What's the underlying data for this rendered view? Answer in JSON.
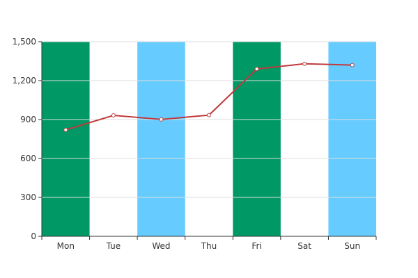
{
  "chart_data": {
    "type": "line",
    "categories": [
      "Mon",
      "Tue",
      "Wed",
      "Thu",
      "Fri",
      "Sat",
      "Sun"
    ],
    "series": [
      {
        "values": [
          820,
          932,
          901,
          934,
          1290,
          1330,
          1320
        ]
      }
    ],
    "ylim": [
      0,
      1500
    ],
    "yticks": [
      0,
      300,
      600,
      900,
      1200,
      1500
    ],
    "ytick_labels": [
      "0",
      "300",
      "600",
      "900",
      "1,200",
      "1,500"
    ],
    "grid": true,
    "category_band_colors": [
      "#009966",
      null,
      "#66ccff",
      null,
      "#009966",
      null,
      "#66ccff"
    ],
    "colors": {
      "line": "#c0393b",
      "marker_fill": "#ffffff",
      "grid": "#dddddd",
      "axis": "#333333"
    }
  }
}
